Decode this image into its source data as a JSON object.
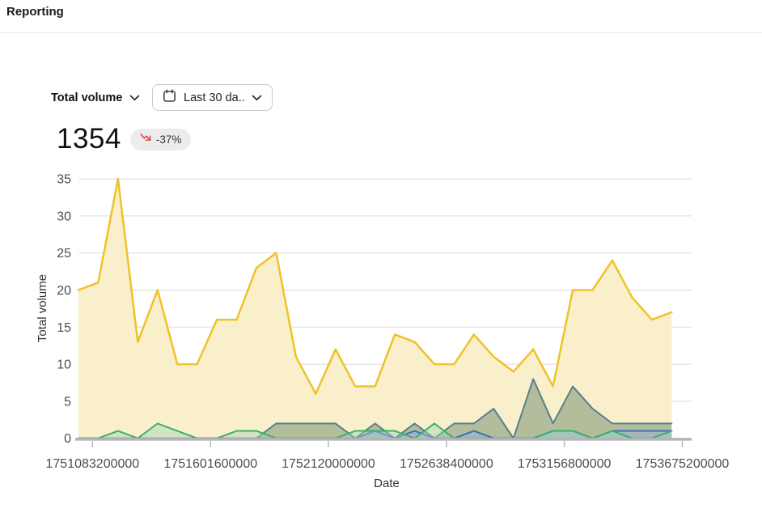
{
  "header": {
    "title": "Reporting"
  },
  "controls": {
    "metric_selector": {
      "label": "Total volume"
    },
    "date_range": {
      "label": "Last 30 da..."
    }
  },
  "summary": {
    "total": "1354",
    "change": "-37%"
  },
  "icons": {
    "metric_chevron": "chevron-down-icon",
    "date_calendar": "calendar-icon",
    "date_chevron": "chevron-down-icon",
    "trend": "trend-down-arrow-icon"
  },
  "colors": {
    "trend_arrow": "#d9534f",
    "badge_bg": "#ececec",
    "gridline": "#dcdcdc",
    "axis_line": "#b5b5b5",
    "tick_text": "#4d4d4d"
  },
  "chart_data": {
    "type": "area",
    "title": "",
    "xlabel": "Date",
    "ylabel": "Total volume",
    "ylim": [
      0,
      35
    ],
    "grid": true,
    "legend": "none",
    "y_ticks": [
      0,
      5,
      10,
      15,
      20,
      25,
      30,
      35
    ],
    "x_tick_labels": [
      "1751083200000",
      "1751601600000",
      "1752120000000",
      "1752638400000",
      "1753156800000",
      "1753675200000"
    ],
    "x_tick_positions": [
      0.71,
      6.68,
      12.64,
      18.61,
      24.57,
      30.54
    ],
    "n_points": 31,
    "series": [
      {
        "name": "total-volume",
        "color": "#efc228",
        "fill": "#f9efca",
        "stroke_width": 2.5,
        "values": [
          20,
          21,
          35,
          13,
          20,
          10,
          10,
          16,
          16,
          23,
          25,
          11,
          6,
          12,
          7,
          7,
          14,
          13,
          10,
          10,
          14,
          11,
          9,
          12,
          7,
          20,
          20,
          24,
          19,
          16,
          17
        ]
      },
      {
        "name": "series-slate",
        "color": "#53808c",
        "fill": "rgba(110,140,110,0.50)",
        "stroke_width": 2,
        "values": [
          0,
          0,
          0,
          0,
          0,
          0,
          0,
          0,
          0,
          0,
          2,
          2,
          2,
          2,
          0,
          2,
          0,
          2,
          0,
          2,
          2,
          4,
          0,
          8,
          2,
          7,
          4,
          2,
          2,
          2,
          2
        ]
      },
      {
        "name": "series-blue",
        "color": "#3a6fbf",
        "fill": "rgba(150,180,220,0.50)",
        "stroke_width": 2,
        "values": [
          0,
          0,
          0,
          0,
          0,
          0,
          0,
          0,
          0,
          0,
          0,
          0,
          0,
          0,
          0,
          1,
          0,
          1,
          0,
          0,
          1,
          0,
          0,
          0,
          1,
          1,
          0,
          1,
          1,
          1,
          1
        ]
      },
      {
        "name": "series-green",
        "color": "#3eae6d",
        "fill": "rgba(160,215,185,0.45)",
        "stroke_width": 2,
        "values": [
          0,
          0,
          1,
          0,
          2,
          1,
          0,
          0,
          1,
          1,
          0,
          0,
          0,
          0,
          1,
          1,
          1,
          0,
          2,
          0,
          0,
          0,
          0,
          0,
          1,
          1,
          0,
          1,
          0,
          0,
          1
        ]
      }
    ]
  }
}
